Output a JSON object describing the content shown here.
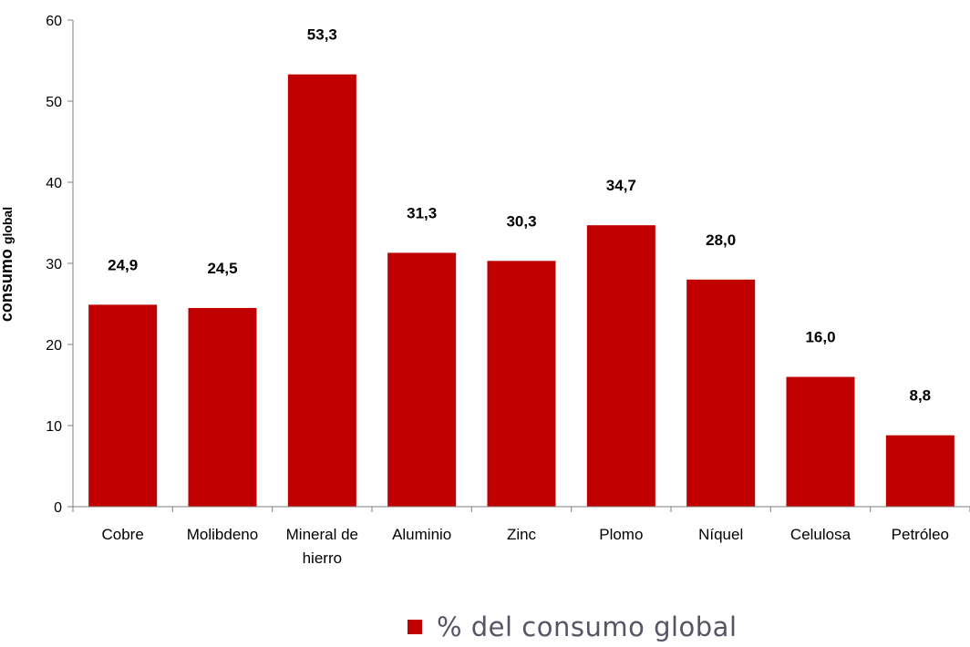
{
  "chart_data": {
    "type": "bar",
    "title": "",
    "xlabel": "",
    "ylabel": "consumo global",
    "ylabel_parts": [
      "consumo ",
      "global"
    ],
    "categories": [
      "Cobre",
      "Molibdeno",
      "Mineral de hierro",
      "Aluminio",
      "Zinc",
      "Plomo",
      "Níquel",
      "Celulosa",
      "Petróleo"
    ],
    "category_lines": [
      [
        "Cobre"
      ],
      [
        "Molibdeno"
      ],
      [
        "Mineral de",
        "hierro"
      ],
      [
        "Aluminio"
      ],
      [
        "Zinc"
      ],
      [
        "Plomo"
      ],
      [
        "Níquel"
      ],
      [
        "Celulosa"
      ],
      [
        "Petróleo"
      ]
    ],
    "series": [
      {
        "name": "% del consumo global",
        "values": [
          24.9,
          24.5,
          53.3,
          31.3,
          30.3,
          34.7,
          28.0,
          16.0,
          8.8
        ],
        "data_labels": [
          "24,9",
          "24,5",
          "53,3",
          "31,3",
          "30,3",
          "34,7",
          "28,0",
          "16,0",
          "8,8"
        ]
      }
    ],
    "ylim": [
      0,
      60
    ],
    "yticks": [
      0,
      10,
      20,
      30,
      40,
      50,
      60
    ],
    "grid": false,
    "legend_position": "bottom-center",
    "bar_color": "#c00000"
  }
}
